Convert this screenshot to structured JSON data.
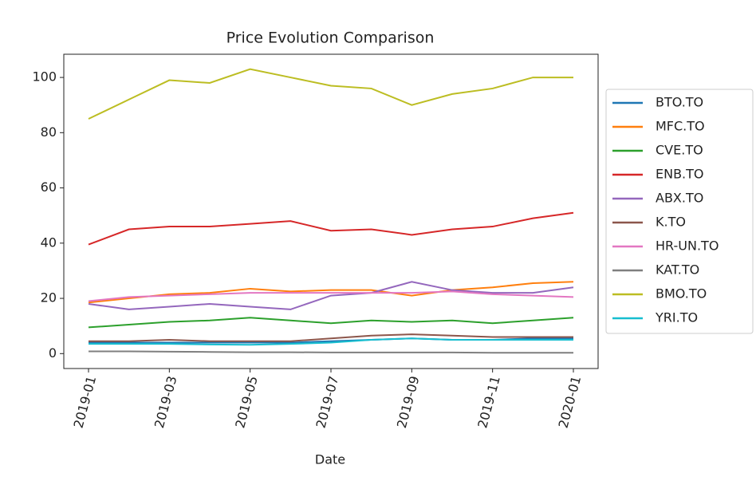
{
  "chart_data": {
    "type": "line",
    "title": "Price Evolution Comparison",
    "xlabel": "Date",
    "x": [
      "2019-01",
      "2019-02",
      "2019-03",
      "2019-04",
      "2019-05",
      "2019-06",
      "2019-07",
      "2019-08",
      "2019-09",
      "2019-10",
      "2019-11",
      "2019-12",
      "2020-01"
    ],
    "xticks": [
      "2019-01",
      "2019-03",
      "2019-05",
      "2019-07",
      "2019-09",
      "2019-11",
      "2020-01"
    ],
    "ylim": [
      -5.4,
      108.4
    ],
    "yticks": [
      0,
      20,
      40,
      60,
      80,
      100
    ],
    "legend": "outside-right",
    "series": [
      {
        "name": "BTO.TO",
        "color": "#1f77b4",
        "values": [
          4,
          4,
          4,
          4,
          4,
          4,
          4.5,
          5,
          5.5,
          5,
          5,
          5.5,
          5.5
        ]
      },
      {
        "name": "MFC.TO",
        "color": "#ff7f0e",
        "values": [
          18.5,
          20,
          21.5,
          22,
          23.5,
          22.5,
          23,
          23,
          21,
          23,
          24,
          25.5,
          26
        ]
      },
      {
        "name": "CVE.TO",
        "color": "#2ca02c",
        "values": [
          9.5,
          10.5,
          11.5,
          12,
          13,
          12,
          11,
          12,
          11.5,
          12,
          11,
          12,
          13
        ]
      },
      {
        "name": "ENB.TO",
        "color": "#d62728",
        "values": [
          39.5,
          45,
          46,
          46,
          47,
          48,
          44.5,
          45,
          43,
          45,
          46,
          49,
          51
        ]
      },
      {
        "name": "ABX.TO",
        "color": "#9467bd",
        "values": [
          18,
          16,
          17,
          18,
          17,
          16,
          21,
          22,
          26,
          23,
          22,
          22,
          24
        ]
      },
      {
        "name": "K.TO",
        "color": "#8c564b",
        "values": [
          4.5,
          4.5,
          5,
          4.5,
          4.5,
          4.5,
          5.5,
          6.5,
          7,
          6.5,
          6,
          6,
          6
        ]
      },
      {
        "name": "HR-UN.TO",
        "color": "#e377c2",
        "values": [
          19,
          20.5,
          21,
          21.5,
          22,
          22,
          22,
          22,
          22,
          22.5,
          21.5,
          21,
          20.5
        ]
      },
      {
        "name": "KAT.TO",
        "color": "#7f7f7f",
        "values": [
          0.8,
          0.8,
          0.7,
          0.6,
          0.5,
          0.5,
          0.4,
          0.4,
          0.4,
          0.4,
          0.3,
          0.3,
          0.3
        ]
      },
      {
        "name": "BMO.TO",
        "color": "#bcbd22",
        "values": [
          85,
          92,
          99,
          98,
          103,
          100,
          97,
          96,
          90,
          94,
          96,
          100,
          100
        ]
      },
      {
        "name": "YRI.TO",
        "color": "#17becf",
        "values": [
          3.5,
          3.5,
          3.5,
          3.3,
          3.2,
          3.5,
          4,
          5,
          5.5,
          5,
          5,
          5,
          5
        ]
      }
    ]
  }
}
